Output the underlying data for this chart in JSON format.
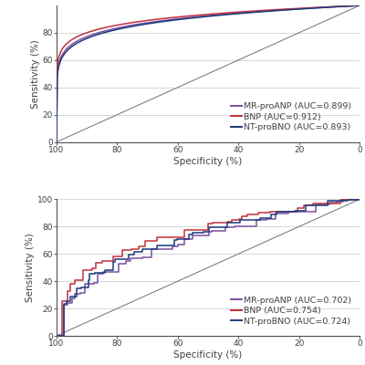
{
  "top_panel": {
    "ylabel": "Sensitivity (%)",
    "xlabel": "Specificity (%)",
    "yticks": [
      0,
      20,
      40,
      60,
      80
    ],
    "xticks": [
      100,
      80,
      60,
      40,
      20,
      0
    ],
    "ylim": [
      0,
      100
    ],
    "xlim": [
      100,
      0
    ],
    "curves": [
      {
        "label": "MR-proANP (AUC=0.899)",
        "color": "#7B4FA0",
        "auc": 0.899
      },
      {
        "label": "BNP (AUC=0.912)",
        "color": "#C0303C",
        "auc": 0.912
      },
      {
        "label": "NT-proBNO (AUC=0.893)",
        "color": "#1A3A7A",
        "auc": 0.893
      }
    ]
  },
  "bottom_panel": {
    "ylabel": "Sensitivity (%)",
    "xlabel": "Specificity (%)",
    "yticks": [
      0,
      20,
      40,
      60,
      80,
      100
    ],
    "xticks": [
      100,
      80,
      60,
      40,
      20,
      0
    ],
    "ylim": [
      0,
      100
    ],
    "xlim": [
      100,
      0
    ],
    "curves": [
      {
        "label": "MR-proANP (AUC=0.702)",
        "color": "#7B4FA0",
        "auc": 0.702
      },
      {
        "label": "BNP (AUC=0.754)",
        "color": "#C0303C",
        "auc": 0.754
      },
      {
        "label": "NT-proBNO (AUC=0.724)",
        "color": "#1A3A7A",
        "auc": 0.724
      }
    ]
  },
  "diagonal_color": "#707070",
  "grid_color": "#C8C8C8",
  "background": "#FFFFFF",
  "legend_fontsize": 6.8,
  "axis_fontsize": 7.5,
  "tick_fontsize": 6.5
}
